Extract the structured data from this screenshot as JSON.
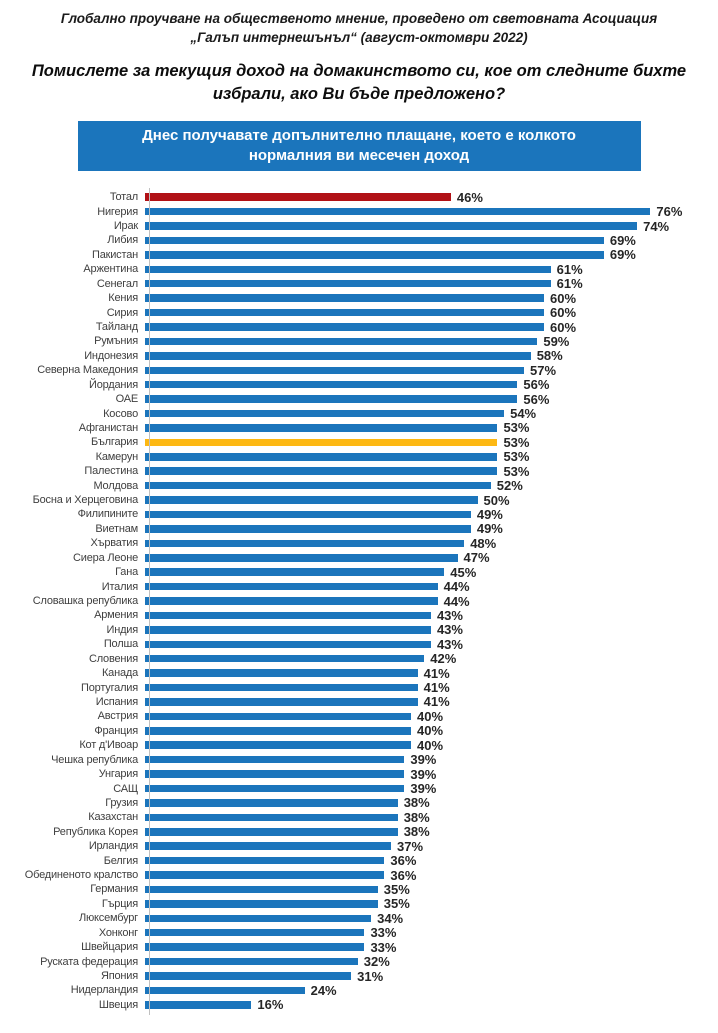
{
  "header": {
    "title_line1": "Глобално проучване на общественото мнение, проведено от световната Асоциация",
    "title_line2": "„Галъп интернешънъл“ (август-октомври 2022)",
    "question": "Помислете за текущия доход на домакинството си, кое от следните бихте избрали, ако Ви бъде предложено?",
    "option_box_text": "Днес получавате допълнително плащане, което е колкото нормалния ви месечен доход",
    "option_box_color": "#1B75BC"
  },
  "chart_data": {
    "type": "bar",
    "orientation": "horizontal",
    "value_unit": "%",
    "xlim": [
      0,
      80
    ],
    "grid": false,
    "legend": false,
    "colors": {
      "default": "#1B75BC",
      "total": "#B11116",
      "bulgaria": "#FDB813",
      "axis": "#C0C0C0"
    },
    "rows": [
      {
        "label": "Тотал",
        "value": 46,
        "highlight": "total"
      },
      {
        "label": "Нигерия",
        "value": 76,
        "highlight": null
      },
      {
        "label": "Ирак",
        "value": 74,
        "highlight": null
      },
      {
        "label": "Либия",
        "value": 69,
        "highlight": null
      },
      {
        "label": "Пакистан",
        "value": 69,
        "highlight": null
      },
      {
        "label": "Аржентина",
        "value": 61,
        "highlight": null
      },
      {
        "label": "Сенегал",
        "value": 61,
        "highlight": null
      },
      {
        "label": "Кения",
        "value": 60,
        "highlight": null
      },
      {
        "label": "Сирия",
        "value": 60,
        "highlight": null
      },
      {
        "label": "Тайланд",
        "value": 60,
        "highlight": null
      },
      {
        "label": "Румъния",
        "value": 59,
        "highlight": null
      },
      {
        "label": "Индонезия",
        "value": 58,
        "highlight": null
      },
      {
        "label": "Северна Македония",
        "value": 57,
        "highlight": null
      },
      {
        "label": "Йордания",
        "value": 56,
        "highlight": null
      },
      {
        "label": "ОАЕ",
        "value": 56,
        "highlight": null
      },
      {
        "label": "Косово",
        "value": 54,
        "highlight": null
      },
      {
        "label": "Афганистан",
        "value": 53,
        "highlight": null
      },
      {
        "label": "България",
        "value": 53,
        "highlight": "bulgaria"
      },
      {
        "label": "Камерун",
        "value": 53,
        "highlight": null
      },
      {
        "label": "Палестина",
        "value": 53,
        "highlight": null
      },
      {
        "label": "Молдова",
        "value": 52,
        "highlight": null
      },
      {
        "label": "Босна и Херцеговина",
        "value": 50,
        "highlight": null
      },
      {
        "label": "Филипините",
        "value": 49,
        "highlight": null
      },
      {
        "label": "Виетнам",
        "value": 49,
        "highlight": null
      },
      {
        "label": "Хърватия",
        "value": 48,
        "highlight": null
      },
      {
        "label": "Сиера Леоне",
        "value": 47,
        "highlight": null
      },
      {
        "label": "Гана",
        "value": 45,
        "highlight": null
      },
      {
        "label": "Италия",
        "value": 44,
        "highlight": null
      },
      {
        "label": "Словашка република",
        "value": 44,
        "highlight": null
      },
      {
        "label": "Армения",
        "value": 43,
        "highlight": null
      },
      {
        "label": "Индия",
        "value": 43,
        "highlight": null
      },
      {
        "label": "Полша",
        "value": 43,
        "highlight": null
      },
      {
        "label": "Словения",
        "value": 42,
        "highlight": null
      },
      {
        "label": "Канада",
        "value": 41,
        "highlight": null
      },
      {
        "label": "Португалия",
        "value": 41,
        "highlight": null
      },
      {
        "label": "Испания",
        "value": 41,
        "highlight": null
      },
      {
        "label": "Австрия",
        "value": 40,
        "highlight": null
      },
      {
        "label": "Франция",
        "value": 40,
        "highlight": null
      },
      {
        "label": "Кот д'Ивоар",
        "value": 40,
        "highlight": null
      },
      {
        "label": "Чешка република",
        "value": 39,
        "highlight": null
      },
      {
        "label": "Унгария",
        "value": 39,
        "highlight": null
      },
      {
        "label": "САЩ",
        "value": 39,
        "highlight": null
      },
      {
        "label": "Грузия",
        "value": 38,
        "highlight": null
      },
      {
        "label": "Казахстан",
        "value": 38,
        "highlight": null
      },
      {
        "label": "Република Корея",
        "value": 38,
        "highlight": null
      },
      {
        "label": "Ирландия",
        "value": 37,
        "highlight": null
      },
      {
        "label": "Белгия",
        "value": 36,
        "highlight": null
      },
      {
        "label": "Обединеното кралство",
        "value": 36,
        "highlight": null
      },
      {
        "label": "Германия",
        "value": 35,
        "highlight": null
      },
      {
        "label": "Гърция",
        "value": 35,
        "highlight": null
      },
      {
        "label": "Люксембург",
        "value": 34,
        "highlight": null
      },
      {
        "label": "Хонконг",
        "value": 33,
        "highlight": null
      },
      {
        "label": "Швейцария",
        "value": 33,
        "highlight": null
      },
      {
        "label": "Руската федерация",
        "value": 32,
        "highlight": null
      },
      {
        "label": "Япония",
        "value": 31,
        "highlight": null
      },
      {
        "label": "Нидерландия",
        "value": 24,
        "highlight": null
      },
      {
        "label": "Швеция",
        "value": 16,
        "highlight": null
      }
    ]
  }
}
